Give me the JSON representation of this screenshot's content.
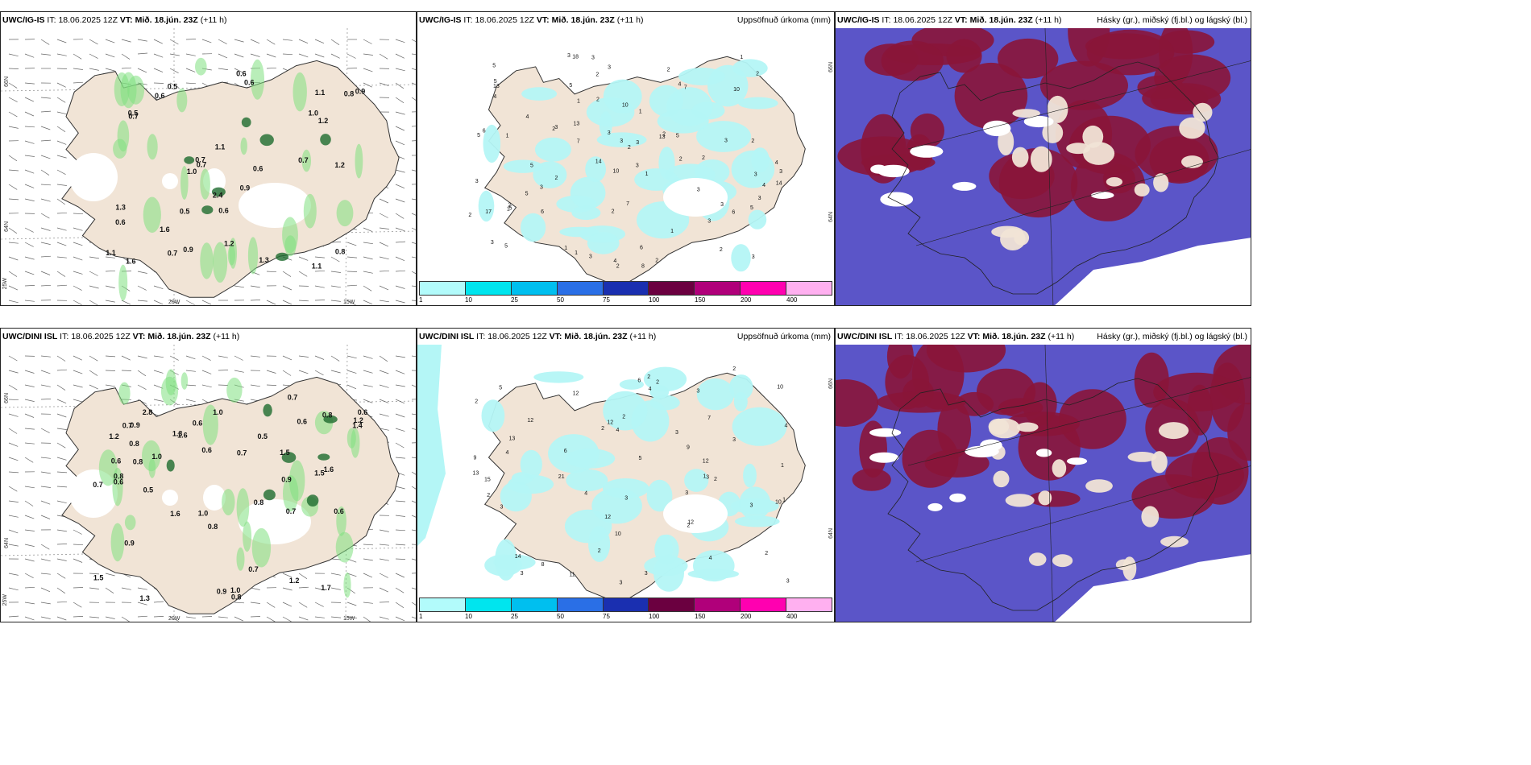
{
  "rows": [
    {
      "model": "UWC/IG-IS",
      "it_label": "IT:",
      "it_value": "18.06.2025 12Z",
      "vt_label": "VT:",
      "vt_value": "Mið. 18.jún. 23Z",
      "lead": "(+11 h)",
      "wind_values": [
        "0.6",
        "1.2",
        "0.7",
        "1.1",
        "0.6",
        "0.7",
        "0.6",
        "0.7",
        "0.5",
        "0.8",
        "1.0",
        "0.5",
        "0.5",
        "0.9",
        "0.9",
        "0.6",
        "1.6",
        "1.2",
        "0.6",
        "1.3",
        "1.3",
        "0.7",
        "0.7",
        "1.1",
        "2.4",
        "0.8",
        "1.6",
        "1.1",
        "1.0",
        "1.1",
        "0.9",
        "0.6",
        "1.2"
      ],
      "precip_values": [
        "2",
        "2",
        "3",
        "2",
        "2",
        "1",
        "3",
        "2",
        "3",
        "5",
        "4",
        "3",
        "3",
        "6",
        "3",
        "5",
        "2",
        "3",
        "4",
        "2",
        "7",
        "2",
        "8",
        "1",
        "3",
        "3",
        "5",
        "3",
        "2",
        "5",
        "6",
        "2",
        "4",
        "7",
        "5",
        "3",
        "4",
        "5",
        "5",
        "6",
        "1",
        "13",
        "10",
        "7",
        "3",
        "13",
        "10",
        "14",
        "18",
        "17",
        "10",
        "2",
        "2",
        "3",
        "1",
        "1",
        "1",
        "1",
        "2",
        "3",
        "3",
        "3",
        "3",
        "4",
        "5",
        "2",
        "3",
        "5",
        "4",
        "3",
        "2",
        "2",
        "14",
        "13",
        "1",
        "1",
        "6",
        "3",
        "2",
        "5"
      ]
    },
    {
      "model": "UWC/DINI ISL",
      "it_label": "IT:",
      "it_value": "18.06.2025 12Z",
      "vt_label": "VT:",
      "vt_value": "Mið. 18.jún. 23Z",
      "lead": "(+11 h)",
      "wind_values": [
        "0.8",
        "0.9",
        "1.5",
        "1.0",
        "0.7",
        "1.0",
        "0.5",
        "1.3",
        "0.8",
        "0.9",
        "0.5",
        "1.4",
        "1.0",
        "0.8",
        "0.8",
        "1.6",
        "2.8",
        "1.6",
        "1.5",
        "1.7",
        "1.5",
        "1.3",
        "0.6",
        "0.6",
        "0.7",
        "0.7",
        "0.9",
        "0.8",
        "0.6",
        "0.8",
        "1.2",
        "0.7",
        "1.2",
        "0.6",
        "1.2",
        "0.8",
        "0.7",
        "0.6",
        "1.6",
        "0.6",
        "0.9",
        "1.0",
        "0.6",
        "0.7"
      ],
      "precip_values": [
        "1",
        "2",
        "3",
        "2",
        "3",
        "2",
        "3",
        "4",
        "2",
        "3",
        "3",
        "4",
        "2",
        "1",
        "4",
        "3",
        "3",
        "5",
        "8",
        "10",
        "12",
        "10",
        "12",
        "6",
        "13",
        "12",
        "15",
        "12",
        "21",
        "9",
        "12",
        "11",
        "5",
        "4",
        "4",
        "2",
        "14",
        "2",
        "6",
        "3",
        "4",
        "9",
        "2",
        "3",
        "3",
        "2",
        "2",
        "10",
        "13",
        "12",
        "7",
        "3",
        "3",
        "2",
        "1"
      ]
    }
  ],
  "panels": {
    "precip_title": "Uppsöfnuð úrkoma (mm)",
    "cloud_title": "Hásky (gr.), miðský (fj.bl.) og lágský (bl.)"
  },
  "axis_labels": {
    "lat_66": "66N",
    "lat_64": "64N",
    "lat_64b": "64N",
    "lat_66b": "66N",
    "lon_20": "20W",
    "lon_15": "15W",
    "lon_25": "25W"
  },
  "colorbar": {
    "ticks": [
      "1",
      "10",
      "25",
      "50",
      "75",
      "100",
      "150",
      "200",
      "400"
    ],
    "colors": [
      "#b2fbfb",
      "#00e5ee",
      "#00bfef",
      "#2a6fe6",
      "#1a2fb0",
      "#6b0040",
      "#b0007a",
      "#ff00b0",
      "#ffb0f0"
    ]
  },
  "colors": {
    "land": "#f1e4d6",
    "precip_green": "#7fe07f",
    "precip_dark": "#1e6b2e",
    "cyan": "#b4f6f6",
    "cloud_blue": "#5b55c8",
    "cloud_red": "#8a1538",
    "cloud_white": "#ffffff"
  }
}
